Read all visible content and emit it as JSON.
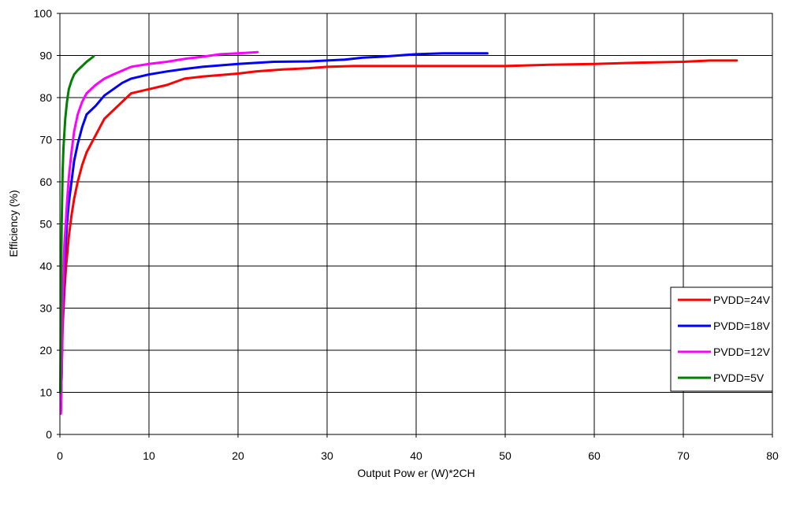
{
  "chart_data": {
    "type": "line",
    "xlabel": "Output Pow er (W)*2CH",
    "ylabel": "Efficiency (%)",
    "xlim": [
      0,
      80
    ],
    "ylim": [
      0,
      100
    ],
    "x_ticks": [
      0,
      10,
      20,
      30,
      40,
      50,
      60,
      70,
      80
    ],
    "y_ticks": [
      0,
      10,
      20,
      30,
      40,
      50,
      60,
      70,
      80,
      90,
      100
    ],
    "grid": true,
    "legend_position": "right",
    "series": [
      {
        "name": "PVDD=24V",
        "color": "#ff0000",
        "points": [
          [
            0.1,
            5
          ],
          [
            0.2,
            15
          ],
          [
            0.3,
            25
          ],
          [
            0.5,
            34
          ],
          [
            0.7,
            40
          ],
          [
            1.0,
            47
          ],
          [
            1.3,
            52
          ],
          [
            1.6,
            56
          ],
          [
            2.0,
            60
          ],
          [
            2.5,
            64
          ],
          [
            3.0,
            67
          ],
          [
            4.0,
            71
          ],
          [
            5.0,
            75
          ],
          [
            6.0,
            77
          ],
          [
            7.0,
            79
          ],
          [
            8.0,
            81
          ],
          [
            10,
            82
          ],
          [
            12,
            83
          ],
          [
            14,
            84.5
          ],
          [
            16,
            85
          ],
          [
            20,
            85.7
          ],
          [
            22,
            86.2
          ],
          [
            25,
            86.7
          ],
          [
            28,
            87
          ],
          [
            30,
            87.3
          ],
          [
            33,
            87.5
          ],
          [
            40,
            87.5
          ],
          [
            50,
            87.5
          ],
          [
            55,
            87.8
          ],
          [
            60,
            88
          ],
          [
            65,
            88.3
          ],
          [
            70,
            88.5
          ],
          [
            73,
            88.8
          ],
          [
            76,
            88.8
          ]
        ]
      },
      {
        "name": "PVDD=18V",
        "color": "#0000ff",
        "points": [
          [
            0.1,
            5
          ],
          [
            0.2,
            15
          ],
          [
            0.3,
            28
          ],
          [
            0.5,
            40
          ],
          [
            0.8,
            50
          ],
          [
            1.0,
            55
          ],
          [
            1.3,
            60
          ],
          [
            1.6,
            65
          ],
          [
            2.0,
            69
          ],
          [
            2.5,
            73
          ],
          [
            3.0,
            76
          ],
          [
            4.0,
            78
          ],
          [
            5.0,
            80.5
          ],
          [
            6.0,
            82
          ],
          [
            7.0,
            83.5
          ],
          [
            8.0,
            84.5
          ],
          [
            10,
            85.5
          ],
          [
            12,
            86.2
          ],
          [
            14,
            86.8
          ],
          [
            16,
            87.3
          ],
          [
            20,
            88
          ],
          [
            24,
            88.5
          ],
          [
            28,
            88.6
          ],
          [
            32,
            89
          ],
          [
            34,
            89.5
          ],
          [
            36,
            89.7
          ],
          [
            38,
            90
          ],
          [
            40,
            90.3
          ],
          [
            43,
            90.5
          ],
          [
            48,
            90.5
          ]
        ]
      },
      {
        "name": "PVDD=12V",
        "color": "#ff00ff",
        "points": [
          [
            0.1,
            5
          ],
          [
            0.2,
            15
          ],
          [
            0.3,
            30
          ],
          [
            0.5,
            45
          ],
          [
            0.8,
            55
          ],
          [
            1.0,
            61
          ],
          [
            1.3,
            67
          ],
          [
            1.6,
            72
          ],
          [
            2.0,
            76
          ],
          [
            2.5,
            79
          ],
          [
            3.0,
            81
          ],
          [
            4.0,
            83
          ],
          [
            5.0,
            84.5
          ],
          [
            6.0,
            85.5
          ],
          [
            8.0,
            87.3
          ],
          [
            10,
            88
          ],
          [
            12,
            88.5
          ],
          [
            14,
            89.2
          ],
          [
            16,
            89.7
          ],
          [
            18,
            90.3
          ],
          [
            20,
            90.5
          ],
          [
            22.2,
            90.8
          ]
        ]
      },
      {
        "name": "PVDD=5V",
        "color": "#008000",
        "points": [
          [
            0.05,
            10
          ],
          [
            0.1,
            28
          ],
          [
            0.2,
            50
          ],
          [
            0.3,
            62
          ],
          [
            0.4,
            68
          ],
          [
            0.6,
            75
          ],
          [
            0.8,
            79
          ],
          [
            1.0,
            82
          ],
          [
            1.3,
            84
          ],
          [
            1.6,
            85.5
          ],
          [
            2.0,
            86.5
          ],
          [
            2.5,
            87.5
          ],
          [
            3.0,
            88.5
          ],
          [
            3.5,
            89.3
          ],
          [
            3.8,
            89.8
          ]
        ]
      }
    ]
  }
}
